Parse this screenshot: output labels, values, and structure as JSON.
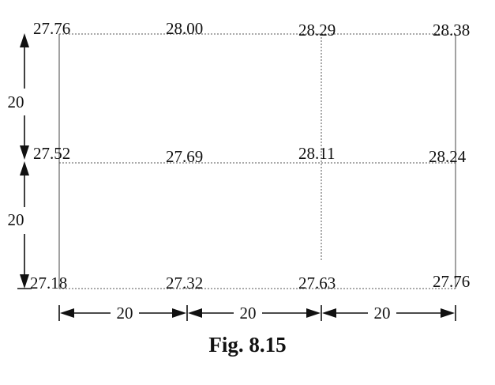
{
  "grid": {
    "rows": [
      [
        "27.76",
        "28.00",
        "28.29",
        "28.38"
      ],
      [
        "27.52",
        "27.69",
        "28.11",
        "28.24"
      ],
      [
        "27.18",
        "27.32",
        "27.63",
        "27.76"
      ]
    ]
  },
  "dimensions": {
    "vertical": [
      "20",
      "20"
    ],
    "horizontal": [
      "20",
      "20",
      "20"
    ]
  },
  "caption": "Fig. 8.15"
}
